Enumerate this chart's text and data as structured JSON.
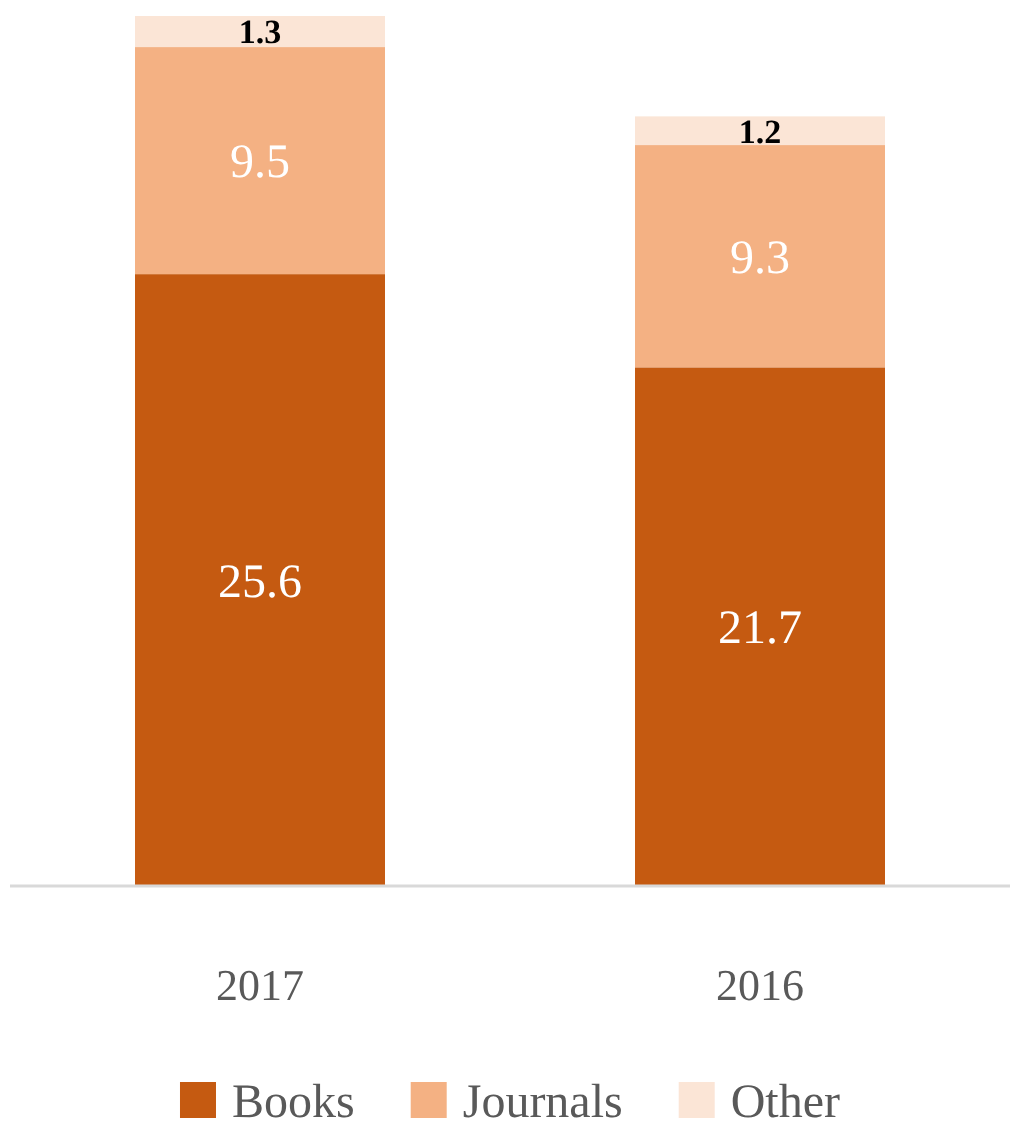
{
  "chart_data": {
    "type": "bar",
    "stacked": true,
    "categories": [
      "2017",
      "2016"
    ],
    "series": [
      {
        "name": "Books",
        "color": "#c55a11",
        "values": [
          25.6,
          21.7
        ]
      },
      {
        "name": "Journals",
        "color": "#f4b183",
        "values": [
          9.5,
          9.3
        ]
      },
      {
        "name": "Other",
        "color": "#fbe5d6",
        "values": [
          1.3,
          1.2
        ]
      }
    ],
    "data_labels": true,
    "legend": "bottom"
  }
}
